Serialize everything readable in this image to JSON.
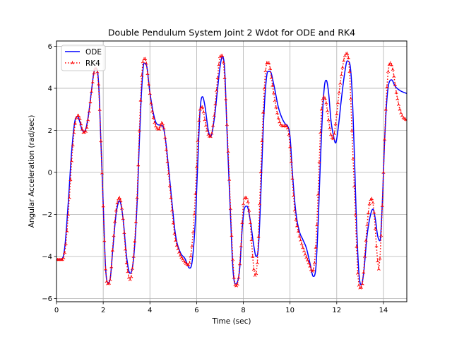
{
  "chart_data": {
    "type": "line",
    "title": "Double Pendulum System Joint 2 Wdot for ODE and RK4",
    "xlabel": "Time (sec)",
    "ylabel": "Angular Acceleration (rad/sec)",
    "xlim": [
      0,
      15
    ],
    "ylim": [
      -6.15,
      6.25
    ],
    "xticks": [
      0,
      2,
      4,
      6,
      8,
      10,
      12,
      14
    ],
    "yticks": [
      -6,
      -4,
      -2,
      0,
      2,
      4,
      6
    ],
    "xtick_labels": [
      "0",
      "2",
      "4",
      "6",
      "8",
      "10",
      "12",
      "14"
    ],
    "ytick_labels": [
      "−6",
      "−4",
      "−2",
      "0",
      "2",
      "4",
      "6"
    ],
    "grid": true,
    "legend_position": "top-left",
    "series": [
      {
        "name": "ODE",
        "color": "#0000ff",
        "style": "solid",
        "marker": "none",
        "points": [
          [
            0,
            -4.15
          ],
          [
            0.2,
            -4.15
          ],
          [
            0.35,
            -3.6
          ],
          [
            0.5,
            -1.5
          ],
          [
            0.65,
            1.0
          ],
          [
            0.8,
            2.5
          ],
          [
            0.9,
            2.65
          ],
          [
            1.0,
            2.4
          ],
          [
            1.1,
            2.0
          ],
          [
            1.2,
            1.95
          ],
          [
            1.35,
            2.6
          ],
          [
            1.5,
            3.9
          ],
          [
            1.6,
            4.75
          ],
          [
            1.7,
            4.95
          ],
          [
            1.8,
            4.3
          ],
          [
            1.9,
            1.5
          ],
          [
            2.0,
            -1.5
          ],
          [
            2.1,
            -4.5
          ],
          [
            2.2,
            -5.25
          ],
          [
            2.3,
            -5.05
          ],
          [
            2.4,
            -3.8
          ],
          [
            2.55,
            -2.0
          ],
          [
            2.7,
            -1.35
          ],
          [
            2.85,
            -2.2
          ],
          [
            3.0,
            -4.0
          ],
          [
            3.15,
            -4.8
          ],
          [
            3.3,
            -4.1
          ],
          [
            3.45,
            -1.5
          ],
          [
            3.55,
            1.5
          ],
          [
            3.65,
            4.0
          ],
          [
            3.75,
            5.2
          ],
          [
            3.85,
            5.1
          ],
          [
            4.0,
            3.8
          ],
          [
            4.15,
            2.8
          ],
          [
            4.3,
            2.3
          ],
          [
            4.45,
            2.25
          ],
          [
            4.55,
            2.2
          ],
          [
            4.65,
            1.7
          ],
          [
            4.8,
            0.2
          ],
          [
            4.95,
            -1.5
          ],
          [
            5.1,
            -3.0
          ],
          [
            5.3,
            -3.8
          ],
          [
            5.5,
            -4.1
          ],
          [
            5.7,
            -4.55
          ],
          [
            5.8,
            -4.3
          ],
          [
            5.95,
            -2.2
          ],
          [
            6.05,
            0.5
          ],
          [
            6.15,
            3.0
          ],
          [
            6.25,
            3.6
          ],
          [
            6.35,
            3.2
          ],
          [
            6.5,
            2.0
          ],
          [
            6.6,
            1.7
          ],
          [
            6.75,
            2.5
          ],
          [
            6.9,
            4.0
          ],
          [
            7.0,
            5.0
          ],
          [
            7.1,
            5.5
          ],
          [
            7.2,
            4.9
          ],
          [
            7.3,
            2.0
          ],
          [
            7.45,
            -2.0
          ],
          [
            7.55,
            -4.5
          ],
          [
            7.65,
            -5.3
          ],
          [
            7.75,
            -5.2
          ],
          [
            7.85,
            -4.5
          ],
          [
            7.95,
            -2.7
          ],
          [
            8.05,
            -1.7
          ],
          [
            8.15,
            -1.6
          ],
          [
            8.3,
            -2.3
          ],
          [
            8.45,
            -3.5
          ],
          [
            8.55,
            -4.0
          ],
          [
            8.65,
            -3.5
          ],
          [
            8.75,
            -1.0
          ],
          [
            8.85,
            2.0
          ],
          [
            8.95,
            4.0
          ],
          [
            9.05,
            4.8
          ],
          [
            9.15,
            4.8
          ],
          [
            9.3,
            4.2
          ],
          [
            9.5,
            3.1
          ],
          [
            9.65,
            2.6
          ],
          [
            9.8,
            2.3
          ],
          [
            9.9,
            2.2
          ],
          [
            10.0,
            1.7
          ],
          [
            10.1,
            0.0
          ],
          [
            10.25,
            -1.9
          ],
          [
            10.4,
            -2.8
          ],
          [
            10.55,
            -3.2
          ],
          [
            10.7,
            -3.6
          ],
          [
            10.85,
            -4.3
          ],
          [
            11.0,
            -4.95
          ],
          [
            11.1,
            -4.6
          ],
          [
            11.2,
            -2.5
          ],
          [
            11.3,
            0.5
          ],
          [
            11.4,
            3.0
          ],
          [
            11.5,
            4.3
          ],
          [
            11.55,
            4.38
          ],
          [
            11.65,
            3.8
          ],
          [
            11.75,
            2.5
          ],
          [
            11.85,
            1.8
          ],
          [
            11.95,
            1.4
          ],
          [
            12.05,
            2.0
          ],
          [
            12.2,
            3.5
          ],
          [
            12.35,
            4.8
          ],
          [
            12.45,
            5.3
          ],
          [
            12.55,
            5.2
          ],
          [
            12.65,
            4.0
          ],
          [
            12.75,
            1.0
          ],
          [
            12.85,
            -2.5
          ],
          [
            12.95,
            -4.8
          ],
          [
            13.05,
            -5.35
          ],
          [
            13.15,
            -4.8
          ],
          [
            13.3,
            -3.0
          ],
          [
            13.45,
            -2.0
          ],
          [
            13.55,
            -1.75
          ],
          [
            13.65,
            -2.2
          ],
          [
            13.75,
            -3.0
          ],
          [
            13.85,
            -3.25
          ],
          [
            13.95,
            -1.5
          ],
          [
            14.05,
            1.5
          ],
          [
            14.15,
            3.5
          ],
          [
            14.25,
            4.3
          ],
          [
            14.35,
            4.4
          ],
          [
            14.5,
            4.1
          ],
          [
            14.7,
            3.9
          ],
          [
            15.0,
            3.75
          ]
        ]
      },
      {
        "name": "RK4",
        "color": "#ff0000",
        "style": "dotted",
        "marker": "tri_up",
        "points": [
          [
            0,
            -4.15
          ],
          [
            0.25,
            -4.15
          ],
          [
            0.4,
            -3.4
          ],
          [
            0.55,
            -1.2
          ],
          [
            0.7,
            1.3
          ],
          [
            0.85,
            2.6
          ],
          [
            0.95,
            2.7
          ],
          [
            1.05,
            2.3
          ],
          [
            1.15,
            1.9
          ],
          [
            1.25,
            1.95
          ],
          [
            1.4,
            2.9
          ],
          [
            1.55,
            4.3
          ],
          [
            1.65,
            4.95
          ],
          [
            1.72,
            4.9
          ],
          [
            1.8,
            4.2
          ],
          [
            1.9,
            1.5
          ],
          [
            2.0,
            -1.6
          ],
          [
            2.1,
            -4.6
          ],
          [
            2.2,
            -5.3
          ],
          [
            2.3,
            -5.1
          ],
          [
            2.4,
            -3.7
          ],
          [
            2.55,
            -1.8
          ],
          [
            2.7,
            -1.2
          ],
          [
            2.85,
            -2.2
          ],
          [
            3.0,
            -4.3
          ],
          [
            3.15,
            -5.1
          ],
          [
            3.3,
            -4.0
          ],
          [
            3.45,
            -1.2
          ],
          [
            3.55,
            2.0
          ],
          [
            3.65,
            4.6
          ],
          [
            3.72,
            5.35
          ],
          [
            3.8,
            5.4
          ],
          [
            3.95,
            4.2
          ],
          [
            4.1,
            2.9
          ],
          [
            4.25,
            2.2
          ],
          [
            4.4,
            2.05
          ],
          [
            4.5,
            2.35
          ],
          [
            4.6,
            2.1
          ],
          [
            4.75,
            0.5
          ],
          [
            4.9,
            -1.2
          ],
          [
            5.05,
            -2.9
          ],
          [
            5.25,
            -3.8
          ],
          [
            5.45,
            -4.2
          ],
          [
            5.65,
            -4.4
          ],
          [
            5.8,
            -3.5
          ],
          [
            5.95,
            -1.0
          ],
          [
            6.05,
            1.5
          ],
          [
            6.15,
            3.0
          ],
          [
            6.25,
            3.1
          ],
          [
            6.35,
            2.5
          ],
          [
            6.5,
            1.8
          ],
          [
            6.6,
            1.7
          ],
          [
            6.75,
            2.7
          ],
          [
            6.9,
            4.5
          ],
          [
            7.0,
            5.5
          ],
          [
            7.1,
            5.55
          ],
          [
            7.2,
            4.5
          ],
          [
            7.35,
            1.0
          ],
          [
            7.5,
            -3.0
          ],
          [
            7.6,
            -5.0
          ],
          [
            7.7,
            -5.4
          ],
          [
            7.8,
            -5.0
          ],
          [
            7.9,
            -3.5
          ],
          [
            8.0,
            -1.5
          ],
          [
            8.1,
            -1.2
          ],
          [
            8.2,
            -1.4
          ],
          [
            8.3,
            -2.4
          ],
          [
            8.4,
            -4.0
          ],
          [
            8.5,
            -4.9
          ],
          [
            8.6,
            -4.3
          ],
          [
            8.7,
            -1.5
          ],
          [
            8.8,
            1.5
          ],
          [
            8.9,
            4.0
          ],
          [
            9.0,
            5.2
          ],
          [
            9.1,
            5.2
          ],
          [
            9.2,
            4.5
          ],
          [
            9.4,
            3.1
          ],
          [
            9.55,
            2.4
          ],
          [
            9.7,
            2.2
          ],
          [
            9.85,
            2.2
          ],
          [
            9.95,
            1.8
          ],
          [
            10.05,
            0.5
          ],
          [
            10.2,
            -1.8
          ],
          [
            10.35,
            -2.8
          ],
          [
            10.5,
            -3.4
          ],
          [
            10.65,
            -3.9
          ],
          [
            10.8,
            -4.3
          ],
          [
            10.95,
            -4.7
          ],
          [
            11.05,
            -4.3
          ],
          [
            11.15,
            -2.5
          ],
          [
            11.25,
            0.5
          ],
          [
            11.35,
            3.0
          ],
          [
            11.45,
            3.6
          ],
          [
            11.55,
            3.3
          ],
          [
            11.65,
            2.5
          ],
          [
            11.75,
            1.8
          ],
          [
            11.85,
            1.6
          ],
          [
            11.95,
            2.3
          ],
          [
            12.1,
            3.8
          ],
          [
            12.25,
            5.0
          ],
          [
            12.35,
            5.55
          ],
          [
            12.45,
            5.65
          ],
          [
            12.55,
            4.8
          ],
          [
            12.65,
            2.0
          ],
          [
            12.8,
            -2.0
          ],
          [
            12.9,
            -4.8
          ],
          [
            13.0,
            -5.5
          ],
          [
            13.1,
            -5.3
          ],
          [
            13.2,
            -4.0
          ],
          [
            13.3,
            -2.5
          ],
          [
            13.4,
            -1.5
          ],
          [
            13.5,
            -1.25
          ],
          [
            13.6,
            -1.9
          ],
          [
            13.7,
            -3.5
          ],
          [
            13.8,
            -4.6
          ],
          [
            13.9,
            -3.0
          ],
          [
            14.0,
            0.0
          ],
          [
            14.1,
            3.0
          ],
          [
            14.2,
            4.8
          ],
          [
            14.3,
            5.2
          ],
          [
            14.4,
            4.9
          ],
          [
            14.55,
            3.8
          ],
          [
            14.7,
            3.0
          ],
          [
            14.85,
            2.6
          ],
          [
            15.0,
            2.5
          ]
        ]
      }
    ]
  }
}
